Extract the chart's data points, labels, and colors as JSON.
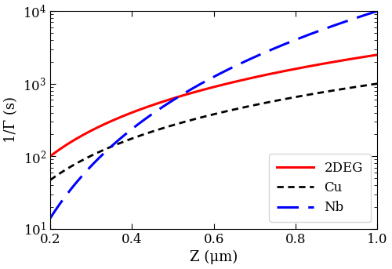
{
  "title": "",
  "xlabel": "Z (μm)",
  "ylabel": "1/Γ (s)",
  "xlim": [
    0.2,
    1.0
  ],
  "ylim": [
    10,
    10000
  ],
  "x_ticks": [
    0.2,
    0.4,
    0.6,
    0.8,
    1.0
  ],
  "curves": {
    "2DEG": {
      "color": "#ff0000",
      "linestyle": "solid",
      "linewidth": 2.2,
      "label": "2DEG",
      "val_at_02": 100,
      "val_at_10": 2500
    },
    "Cu": {
      "color": "#000000",
      "dash_pattern": [
        3,
        2
      ],
      "linewidth": 2.0,
      "label": "Cu",
      "val_at_02": 47,
      "val_at_10": 1000
    },
    "Nb": {
      "color": "#0000ff",
      "dash_pattern": [
        9,
        4
      ],
      "linewidth": 2.2,
      "label": "Nb",
      "val_at_02": 14,
      "val_at_10": 10000
    }
  },
  "legend": {
    "loc": "lower right",
    "fontsize": 12,
    "frameon": true
  },
  "background_color": "#ffffff",
  "font_family": "DejaVu Serif"
}
